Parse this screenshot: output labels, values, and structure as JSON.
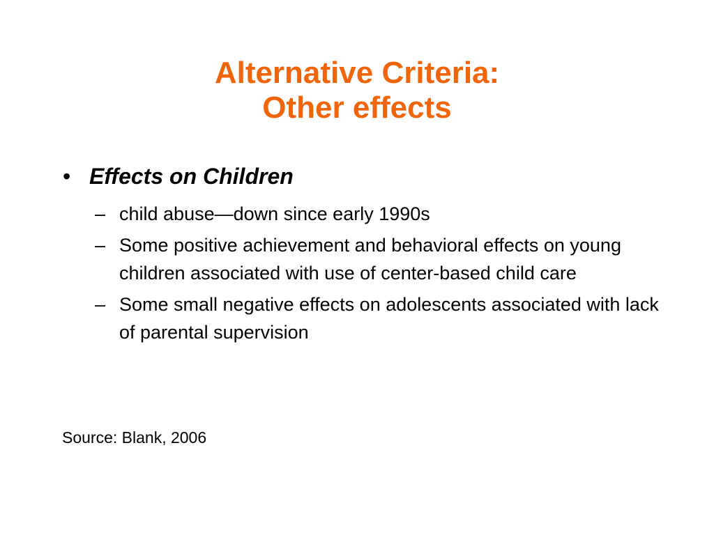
{
  "colors": {
    "title": "#f0650a",
    "text": "#000000",
    "background": "#ffffff"
  },
  "title": {
    "line1": "Alternative Criteria:",
    "line2": "Other effects"
  },
  "bullet": {
    "glyph": "•",
    "text": "Effects on Children",
    "sub_glyph": "–",
    "sub_items": [
      "child abuse—down since early 1990s",
      "Some positive achievement and behavioral effects on young children associated with use of center-based child care",
      "Some small negative effects on adolescents associated with lack of parental supervision"
    ]
  },
  "source": "Source: Blank, 2006"
}
